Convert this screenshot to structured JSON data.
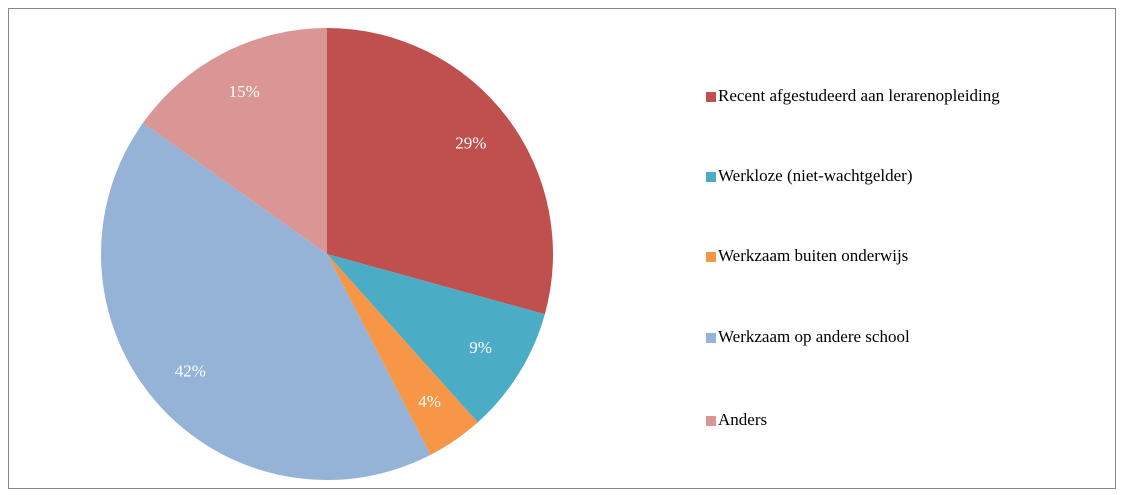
{
  "chart_data": {
    "type": "pie",
    "categories": [
      "Recent afgestudeerd aan lerarenopleiding",
      "Werkloze (niet-wachtgelder)",
      "Werkzaam buiten onderwijs",
      "Werkzaam op andere school",
      "Anders"
    ],
    "values": [
      29,
      9,
      4,
      42,
      15
    ],
    "value_labels": [
      "29%",
      "9%",
      "4%",
      "42%",
      "15%"
    ],
    "colors": [
      "#c0504d",
      "#4bacc6",
      "#f79646",
      "#95b3d7",
      "#d99694"
    ],
    "legend": "right"
  }
}
